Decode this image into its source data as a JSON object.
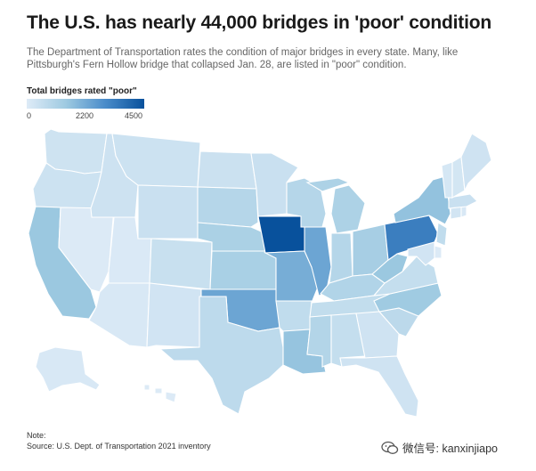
{
  "title": "The U.S. has nearly 44,000 bridges in 'poor' condition",
  "subtitle": "The Department of Transportation rates the condition of major bridges in every state. Many, like Pittsburgh's Fern Hollow bridge that collapsed Jan. 28, are listed in \"poor\" condition.",
  "legend": {
    "title": "Total bridges rated \"poor\"",
    "ticks": [
      "0",
      "2200",
      "4500"
    ],
    "min": 0,
    "max": 4500,
    "color_low": "#deebf7",
    "color_high": "#08519c"
  },
  "note_label": "Note:",
  "source": "Source: U.S. Dept. of Transportation 2021 inventory",
  "watermark": {
    "icon": "wechat-icon",
    "text": "微信号: kanxinjiapo"
  },
  "map_data": {
    "type": "choropleth",
    "metric": "bridges rated poor",
    "states": {
      "WA": 380,
      "OR": 420,
      "CA": 1550,
      "NV": 40,
      "ID": 400,
      "MT": 420,
      "WY": 500,
      "UT": 100,
      "AZ": 150,
      "CO": 520,
      "NM": 300,
      "TX": 780,
      "ND": 450,
      "SD": 950,
      "NE": 1200,
      "KS": 1250,
      "OK": 2400,
      "MN": 500,
      "IA": 4550,
      "MO": 2200,
      "AR": 700,
      "LA": 1650,
      "WI": 950,
      "IL": 2400,
      "MS": 1000,
      "MI": 1150,
      "IN": 950,
      "OH": 1300,
      "KY": 1050,
      "TN": 650,
      "AL": 600,
      "GA": 350,
      "FL": 350,
      "SC": 800,
      "NC": 1450,
      "VA": 600,
      "WV": 1550,
      "PA": 3350,
      "NY": 1700,
      "ME": 350,
      "NH": 250,
      "VT": 200,
      "MA": 500,
      "CT": 280,
      "RI": 150,
      "NJ": 700,
      "DE": 50,
      "MD": 300,
      "AK": 150,
      "HI": 50
    }
  }
}
